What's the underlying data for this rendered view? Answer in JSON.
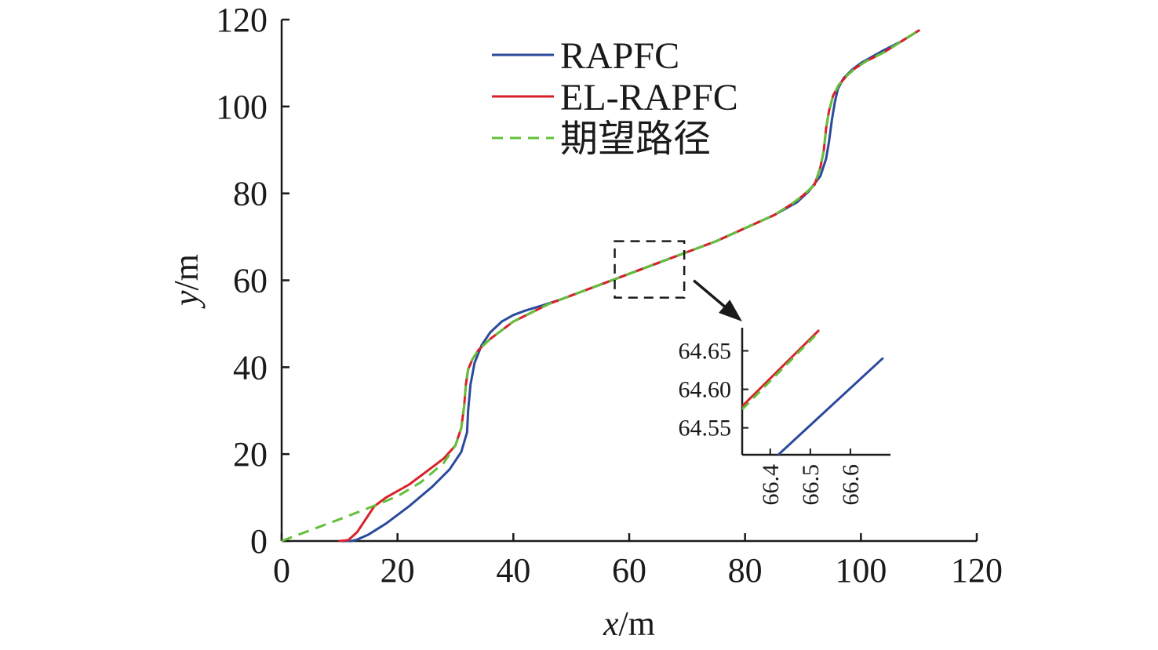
{
  "chart_data": [
    {
      "type": "line",
      "xlabel_var": "x",
      "ylabel_var": "y",
      "unit": "/m",
      "xlim": [
        0,
        120
      ],
      "ylim": [
        0,
        120
      ],
      "xticks": [
        "0",
        "20",
        "40",
        "60",
        "80",
        "100",
        "120"
      ],
      "yticks": [
        "0",
        "20",
        "40",
        "60",
        "80",
        "100",
        "120"
      ],
      "grid": false,
      "legend_position": "top",
      "colors": {
        "RAPFC": "#2b4a9c",
        "EL-RAPFC": "#d8212b",
        "期望路径": "#62c03a"
      },
      "series": [
        {
          "name": "RAPFC",
          "style": "solid",
          "x": [
            10,
            12,
            13,
            15,
            18,
            22,
            26,
            29,
            31,
            32,
            32.2,
            32.6,
            33.3,
            34.5,
            36,
            38,
            40,
            42,
            45,
            48,
            52,
            56,
            60,
            65,
            70,
            75,
            80,
            85,
            89,
            91,
            93,
            94,
            94.5,
            95.0,
            95.5,
            96,
            97,
            98.5,
            100,
            102,
            104,
            107,
            110
          ],
          "y": [
            0,
            0,
            0.3,
            1.5,
            4,
            8,
            12.5,
            16.5,
            20.5,
            25,
            30,
            36,
            41,
            45,
            48,
            50.5,
            52,
            53,
            54.2,
            55.5,
            57.5,
            59.5,
            61.5,
            64,
            66.5,
            69,
            72,
            75,
            78,
            80.5,
            84,
            88,
            92,
            97,
            101,
            104,
            106.5,
            108.5,
            110,
            111.5,
            113,
            115,
            117.5
          ]
        },
        {
          "name": "EL-RAPFC",
          "style": "solid",
          "x": [
            10,
            11.5,
            13,
            14.5,
            16,
            18,
            20,
            22,
            24,
            26,
            28,
            30,
            31,
            31.5,
            31.8,
            32.2,
            33,
            34,
            36,
            38,
            40,
            43,
            46,
            50,
            55,
            60,
            65,
            70,
            75,
            80,
            85,
            88,
            90,
            92,
            93,
            93.6,
            94,
            94.5,
            95.2,
            96.2,
            97.5,
            99,
            101,
            104,
            107,
            110
          ],
          "y": [
            0,
            0.2,
            2,
            5,
            8,
            10,
            11.5,
            13,
            15,
            17,
            19,
            22,
            26,
            31,
            36,
            39.5,
            42,
            44,
            46.5,
            48.5,
            50.5,
            52.5,
            54.5,
            56.5,
            59,
            61.5,
            64,
            66.5,
            69,
            72,
            75,
            77.5,
            79.5,
            82,
            86,
            90,
            95,
            99,
            102.5,
            105,
            107,
            108.8,
            110.5,
            112.5,
            115,
            117.5
          ]
        },
        {
          "name": "期望路径",
          "style": "dashed",
          "x": [
            0,
            5,
            10,
            15,
            20,
            24,
            28,
            30,
            31,
            31.5,
            31.8,
            32.2,
            33,
            34,
            36,
            38,
            40,
            43,
            46,
            50,
            55,
            60,
            65,
            70,
            75,
            80,
            85,
            88,
            90,
            92,
            93,
            93.6,
            94,
            94.5,
            95.2,
            96.2,
            97.5,
            99,
            101,
            104,
            107,
            110
          ],
          "y": [
            0,
            2.5,
            5,
            7.6,
            10.3,
            13.5,
            18,
            22,
            26,
            31,
            36,
            39.5,
            42,
            44,
            46.5,
            48.5,
            50.5,
            52.5,
            54.5,
            56.5,
            59,
            61.5,
            64,
            66.5,
            69,
            72,
            75,
            77.5,
            79.5,
            82,
            86,
            90,
            95,
            99,
            102.5,
            105,
            107,
            108.8,
            110.5,
            112.5,
            115,
            117.5
          ]
        }
      ],
      "zoom_box": {
        "x": [
          57.5,
          69.5
        ],
        "y": [
          56,
          69
        ]
      }
    },
    {
      "type": "line",
      "inset": true,
      "xlim": [
        66.33,
        66.7
      ],
      "ylim": [
        64.515,
        64.68
      ],
      "xticks": [
        "66.4",
        "66.5",
        "66.6"
      ],
      "yticks": [
        "64.55",
        "64.60",
        "64.65"
      ],
      "series": [
        {
          "name": "RAPFC",
          "style": "solid",
          "x": [
            66.42,
            66.68
          ],
          "y": [
            64.515,
            64.64
          ]
        },
        {
          "name": "EL-RAPFC",
          "style": "solid",
          "x": [
            66.33,
            66.52
          ],
          "y": [
            64.578,
            64.676
          ]
        },
        {
          "name": "期望路径",
          "style": "dashed",
          "x": [
            66.33,
            66.52
          ],
          "y": [
            64.574,
            64.674
          ]
        }
      ]
    }
  ]
}
